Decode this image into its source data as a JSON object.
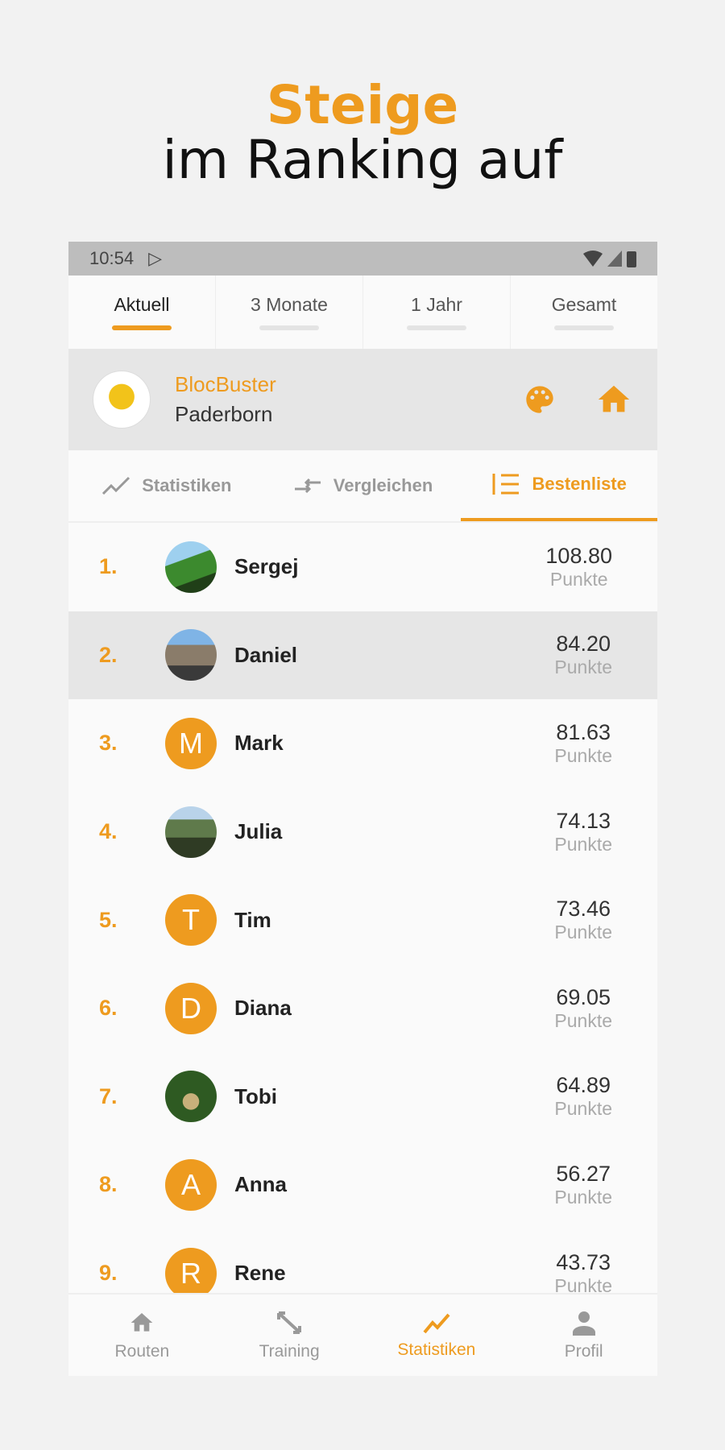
{
  "headline": {
    "line1": "Steige",
    "line2": "im Ranking auf"
  },
  "status": {
    "time": "10:54"
  },
  "period_tabs": [
    {
      "label": "Aktuell",
      "active": true
    },
    {
      "label": "3 Monate"
    },
    {
      "label": "1 Jahr"
    },
    {
      "label": "Gesamt"
    }
  ],
  "gym": {
    "name": "BlocBuster",
    "city": "Paderborn"
  },
  "sub_tabs": [
    {
      "label": "Statistiken",
      "icon": "trend-icon"
    },
    {
      "label": "Vergleichen",
      "icon": "compare-icon"
    },
    {
      "label": "Bestenliste",
      "icon": "list-icon",
      "active": true
    }
  ],
  "ranking": [
    {
      "rank": "1.",
      "name": "Sergej",
      "points": "108.80",
      "unit": "Punkte",
      "avatar": "photo"
    },
    {
      "rank": "2.",
      "name": "Daniel",
      "points": "84.20",
      "unit": "Punkte",
      "avatar": "photo",
      "highlight": true
    },
    {
      "rank": "3.",
      "name": "Mark",
      "points": "81.63",
      "unit": "Punkte",
      "avatar": "M"
    },
    {
      "rank": "4.",
      "name": "Julia",
      "points": "74.13",
      "unit": "Punkte",
      "avatar": "photo"
    },
    {
      "rank": "5.",
      "name": "Tim",
      "points": "73.46",
      "unit": "Punkte",
      "avatar": "T"
    },
    {
      "rank": "6.",
      "name": "Diana",
      "points": "69.05",
      "unit": "Punkte",
      "avatar": "D"
    },
    {
      "rank": "7.",
      "name": "Tobi",
      "points": "64.89",
      "unit": "Punkte",
      "avatar": "photo"
    },
    {
      "rank": "8.",
      "name": "Anna",
      "points": "56.27",
      "unit": "Punkte",
      "avatar": "A"
    },
    {
      "rank": "9.",
      "name": "Rene",
      "points": "43.73",
      "unit": "Punkte",
      "avatar": "R"
    }
  ],
  "bottom_nav": [
    {
      "label": "Routen",
      "icon": "home-icon"
    },
    {
      "label": "Training",
      "icon": "resize-icon"
    },
    {
      "label": "Statistiken",
      "icon": "trend-icon",
      "active": true
    },
    {
      "label": "Profil",
      "icon": "person-icon"
    }
  ],
  "colors": {
    "accent": "#ee9b1f"
  }
}
